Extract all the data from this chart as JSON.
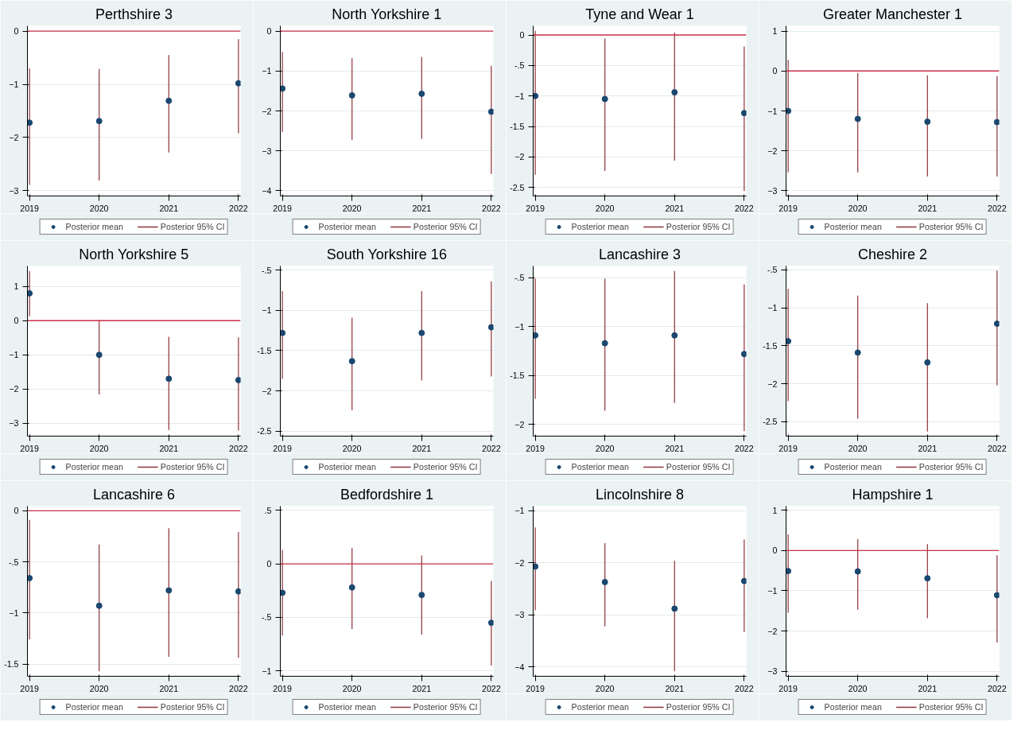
{
  "chart_data": [
    {
      "type": "scatter",
      "title": "Perthshire 3",
      "x": [
        2019,
        2020,
        2021,
        2022
      ],
      "xlim": [
        2018.97,
        2022.03
      ],
      "xticks": [
        2019,
        2020,
        2021,
        2022
      ],
      "ylim": [
        -3.1,
        0.1
      ],
      "yticks": [
        -3,
        -2,
        -1,
        0
      ],
      "grid": "y",
      "legend": "bottom",
      "marker": "circle",
      "ref_lines": [
        {
          "axis": "y",
          "value": 0,
          "color": "#c8304a"
        }
      ],
      "series": [
        {
          "name": "Posterior mean",
          "color": "#1a476f",
          "values": [
            -1.72,
            -1.69,
            -1.31,
            -0.98
          ]
        },
        {
          "name": "Posterior 95% CI",
          "type": "bar",
          "color": "#90353b",
          "base": [
            -2.89,
            -2.81,
            -2.28,
            -1.92
          ],
          "values": [
            2.19,
            2.1,
            1.83,
            1.77
          ]
        }
      ]
    },
    {
      "type": "scatter",
      "title": "North Yorkshire 1",
      "x": [
        2019,
        2020,
        2021,
        2022
      ],
      "xlim": [
        2018.97,
        2022.03
      ],
      "xticks": [
        2019,
        2020,
        2021,
        2022
      ],
      "ylim": [
        -4.13,
        0.13
      ],
      "yticks": [
        -4,
        -3,
        -2,
        -1,
        0
      ],
      "grid": "y",
      "legend": "bottom",
      "marker": "circle",
      "ref_lines": [
        {
          "axis": "y",
          "value": 0,
          "color": "#c8304a"
        }
      ],
      "series": [
        {
          "name": "Posterior mean",
          "color": "#1a476f",
          "values": [
            -1.44,
            -1.61,
            -1.57,
            -2.02
          ]
        },
        {
          "name": "Posterior 95% CI",
          "type": "bar",
          "color": "#90353b",
          "base": [
            -2.53,
            -2.73,
            -2.7,
            -3.58
          ],
          "values": [
            2.01,
            2.05,
            2.05,
            2.71
          ]
        }
      ]
    },
    {
      "type": "scatter",
      "title": "Tyne and Wear 1",
      "x": [
        2019,
        2020,
        2021,
        2022
      ],
      "xlim": [
        2018.97,
        2022.03
      ],
      "xticks": [
        2019,
        2020,
        2021,
        2022
      ],
      "ylim": [
        -2.64,
        0.15
      ],
      "yticks": [
        {
          "value": -2.5,
          "label": "-2.5"
        },
        -2,
        {
          "value": -1.5,
          "label": "-1.5"
        },
        -1,
        {
          "value": -0.5,
          "label": "-.5"
        },
        0
      ],
      "grid": "y",
      "legend": "bottom",
      "marker": "circle",
      "ref_lines": [
        {
          "axis": "y",
          "value": 0,
          "color": "#c8304a"
        }
      ],
      "series": [
        {
          "name": "Posterior mean",
          "color": "#1a476f",
          "values": [
            -1.0,
            -1.05,
            -0.94,
            -1.28
          ]
        },
        {
          "name": "Posterior 95% CI",
          "type": "bar",
          "color": "#90353b",
          "base": [
            -2.29,
            -2.23,
            -2.06,
            -2.56
          ],
          "values": [
            2.36,
            2.17,
            2.1,
            2.37
          ]
        }
      ]
    },
    {
      "type": "scatter",
      "title": "Greater Manchester 1",
      "x": [
        2019,
        2020,
        2021,
        2022
      ],
      "xlim": [
        2018.97,
        2022.03
      ],
      "xticks": [
        2019,
        2020,
        2021,
        2022
      ],
      "ylim": [
        -3.13,
        1.13
      ],
      "yticks": [
        -3,
        -2,
        -1,
        0,
        1
      ],
      "grid": "y",
      "legend": "bottom",
      "marker": "circle",
      "ref_lines": [
        {
          "axis": "y",
          "value": 0,
          "color": "#c8304a"
        }
      ],
      "series": [
        {
          "name": "Posterior mean",
          "color": "#1a476f",
          "values": [
            -1.0,
            -1.2,
            -1.27,
            -1.28
          ]
        },
        {
          "name": "Posterior 95% CI",
          "type": "bar",
          "color": "#90353b",
          "base": [
            -2.54,
            -2.54,
            -2.64,
            -2.64
          ],
          "values": [
            2.82,
            2.49,
            2.53,
            2.51
          ]
        }
      ]
    },
    {
      "type": "scatter",
      "title": "North Yorkshire 5",
      "x": [
        2019,
        2020,
        2021,
        2022
      ],
      "xlim": [
        2018.97,
        2022.03
      ],
      "xticks": [
        2019,
        2020,
        2021,
        2022
      ],
      "ylim": [
        -3.38,
        1.6
      ],
      "yticks": [
        -3,
        -2,
        -1,
        0,
        1
      ],
      "grid": "y",
      "legend": "bottom",
      "marker": "circle",
      "ref_lines": [
        {
          "axis": "y",
          "value": 0,
          "color": "#c8304a"
        }
      ],
      "series": [
        {
          "name": "Posterior mean",
          "color": "#1a476f",
          "values": [
            0.8,
            -1.0,
            -1.7,
            -1.74
          ]
        },
        {
          "name": "Posterior 95% CI",
          "type": "bar",
          "color": "#90353b",
          "base": [
            0.13,
            -2.16,
            -3.2,
            -3.22
          ],
          "values": [
            1.32,
            2.18,
            2.73,
            2.73
          ]
        }
      ]
    },
    {
      "type": "scatter",
      "title": "South Yorkshire 16",
      "x": [
        2019,
        2020,
        2021,
        2022
      ],
      "xlim": [
        2018.97,
        2022.03
      ],
      "xticks": [
        2019,
        2020,
        2021,
        2022
      ],
      "ylim": [
        -2.56,
        -0.45
      ],
      "yticks": [
        {
          "value": -2.5,
          "label": "-2.5"
        },
        -2,
        {
          "value": -1.5,
          "label": "-1.5"
        },
        -1,
        {
          "value": -0.5,
          "label": "-.5"
        }
      ],
      "grid": "y",
      "legend": "bottom",
      "marker": "circle",
      "series": [
        {
          "name": "Posterior mean",
          "color": "#1a476f",
          "values": [
            -1.28,
            -1.63,
            -1.28,
            -1.21
          ]
        },
        {
          "name": "Posterior 95% CI",
          "type": "bar",
          "color": "#90353b",
          "base": [
            -1.85,
            -2.24,
            -1.87,
            -1.82
          ],
          "values": [
            1.09,
            1.15,
            1.11,
            1.18
          ]
        }
      ]
    },
    {
      "type": "scatter",
      "title": "Lancashire 3",
      "x": [
        2019,
        2020,
        2021,
        2022
      ],
      "xlim": [
        2018.97,
        2022.03
      ],
      "xticks": [
        2019,
        2020,
        2021,
        2022
      ],
      "ylim": [
        -2.12,
        -0.38
      ],
      "yticks": [
        -2,
        {
          "value": -1.5,
          "label": "-1.5"
        },
        -1,
        {
          "value": -0.5,
          "label": "-.5"
        }
      ],
      "grid": "y",
      "legend": "bottom",
      "marker": "circle",
      "series": [
        {
          "name": "Posterior mean",
          "color": "#1a476f",
          "values": [
            -1.09,
            -1.17,
            -1.09,
            -1.28
          ]
        },
        {
          "name": "Posterior 95% CI",
          "type": "bar",
          "color": "#90353b",
          "base": [
            -1.74,
            -1.86,
            -1.78,
            -2.07
          ],
          "values": [
            1.23,
            1.35,
            1.35,
            1.5
          ]
        }
      ]
    },
    {
      "type": "scatter",
      "title": "Cheshire 2",
      "x": [
        2019,
        2020,
        2021,
        2022
      ],
      "xlim": [
        2018.97,
        2022.03
      ],
      "xticks": [
        2019,
        2020,
        2021,
        2022
      ],
      "ylim": [
        -2.69,
        -0.45
      ],
      "yticks": [
        {
          "value": -2.5,
          "label": "-2.5"
        },
        -2,
        {
          "value": -1.5,
          "label": "-1.5"
        },
        -1,
        {
          "value": -0.5,
          "label": "-.5"
        }
      ],
      "grid": "y",
      "legend": "bottom",
      "marker": "circle",
      "series": [
        {
          "name": "Posterior mean",
          "color": "#1a476f",
          "values": [
            -1.44,
            -1.59,
            -1.72,
            -1.21
          ]
        },
        {
          "name": "Posterior 95% CI",
          "type": "bar",
          "color": "#90353b",
          "base": [
            -2.23,
            -2.46,
            -2.63,
            -2.02
          ],
          "values": [
            1.48,
            1.62,
            1.69,
            1.51
          ]
        }
      ]
    },
    {
      "type": "scatter",
      "title": "Lancashire 6",
      "x": [
        2019,
        2020,
        2021,
        2022
      ],
      "xlim": [
        2018.97,
        2022.03
      ],
      "xticks": [
        2019,
        2020,
        2021,
        2022
      ],
      "ylim": [
        -1.62,
        0.045
      ],
      "yticks": [
        {
          "value": -1.5,
          "label": "-1.5"
        },
        -1,
        {
          "value": -0.5,
          "label": "-.5"
        },
        0
      ],
      "grid": "y",
      "legend": "bottom",
      "marker": "circle",
      "ref_lines": [
        {
          "axis": "y",
          "value": 0,
          "color": "#c8304a"
        }
      ],
      "series": [
        {
          "name": "Posterior mean",
          "color": "#1a476f",
          "values": [
            -0.66,
            -0.93,
            -0.78,
            -0.79
          ]
        },
        {
          "name": "Posterior 95% CI",
          "type": "bar",
          "color": "#90353b",
          "base": [
            -1.26,
            -1.57,
            -1.43,
            -1.44
          ],
          "values": [
            1.17,
            1.24,
            1.26,
            1.23
          ]
        }
      ]
    },
    {
      "type": "scatter",
      "title": "Bedfordshire 1",
      "x": [
        2019,
        2020,
        2021,
        2022
      ],
      "xlim": [
        2018.97,
        2022.03
      ],
      "xticks": [
        2019,
        2020,
        2021,
        2022
      ],
      "ylim": [
        -1.05,
        0.54
      ],
      "yticks": [
        -1,
        {
          "value": -0.5,
          "label": "-.5"
        },
        0,
        {
          "value": 0.5,
          "label": ".5"
        }
      ],
      "grid": "y",
      "legend": "bottom",
      "marker": "circle",
      "ref_lines": [
        {
          "axis": "y",
          "value": 0,
          "color": "#c8304a"
        }
      ],
      "series": [
        {
          "name": "Posterior mean",
          "color": "#1a476f",
          "values": [
            -0.27,
            -0.22,
            -0.29,
            -0.55
          ]
        },
        {
          "name": "Posterior 95% CI",
          "type": "bar",
          "color": "#90353b",
          "base": [
            -0.67,
            -0.61,
            -0.66,
            -0.95
          ],
          "values": [
            0.8,
            0.76,
            0.74,
            0.79
          ]
        }
      ]
    },
    {
      "type": "scatter",
      "title": "Lincolnshire 8",
      "x": [
        2019,
        2020,
        2021,
        2022
      ],
      "xlim": [
        2018.97,
        2022.03
      ],
      "xticks": [
        2019,
        2020,
        2021,
        2022
      ],
      "ylim": [
        -4.18,
        -0.91
      ],
      "yticks": [
        -4,
        -3,
        -2,
        -1
      ],
      "grid": "y",
      "legend": "bottom",
      "marker": "circle",
      "series": [
        {
          "name": "Posterior mean",
          "color": "#1a476f",
          "values": [
            -2.07,
            -2.37,
            -2.88,
            -2.35
          ]
        },
        {
          "name": "Posterior 95% CI",
          "type": "bar",
          "color": "#90353b",
          "base": [
            -2.91,
            -3.22,
            -4.08,
            -3.33
          ],
          "values": [
            1.59,
            1.6,
            2.12,
            1.78
          ]
        }
      ]
    },
    {
      "type": "scatter",
      "title": "Hampshire 1",
      "x": [
        2019,
        2020,
        2021,
        2022
      ],
      "xlim": [
        2018.97,
        2022.03
      ],
      "xticks": [
        2019,
        2020,
        2021,
        2022
      ],
      "ylim": [
        -3.12,
        1.1
      ],
      "yticks": [
        -3,
        -2,
        -1,
        0,
        1
      ],
      "grid": "y",
      "legend": "bottom",
      "marker": "circle",
      "ref_lines": [
        {
          "axis": "y",
          "value": 0,
          "color": "#c8304a"
        }
      ],
      "series": [
        {
          "name": "Posterior mean",
          "color": "#1a476f",
          "values": [
            -0.51,
            -0.52,
            -0.69,
            -1.11
          ]
        },
        {
          "name": "Posterior 95% CI",
          "type": "bar",
          "color": "#90353b",
          "base": [
            -1.54,
            -1.47,
            -1.68,
            -2.28
          ],
          "values": [
            1.94,
            1.75,
            1.84,
            2.16
          ]
        }
      ]
    }
  ]
}
